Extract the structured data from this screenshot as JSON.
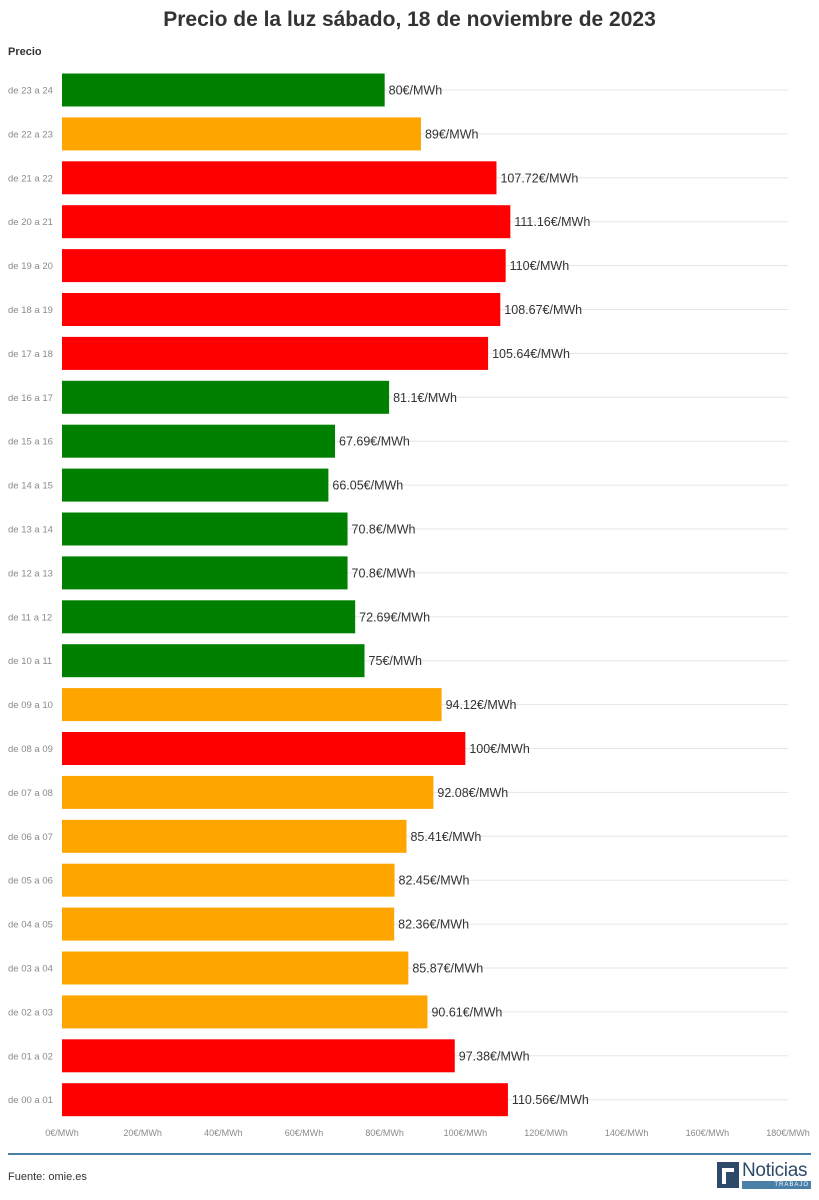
{
  "chart_data": {
    "type": "bar",
    "orientation": "horizontal",
    "title": "Precio de la luz sábado, 18 de noviembre de 2023",
    "ylabel": "Precio",
    "xlim": [
      0,
      180
    ],
    "x_ticks": [
      "0€/MWh",
      "20€/MWh",
      "40€/MWh",
      "60€/MWh",
      "80€/MWh",
      "100€/MWh",
      "120€/MWh",
      "140€/MWh",
      "160€/MWh",
      "180€/MWh"
    ],
    "grid": true,
    "categories": [
      "de 23 a 24",
      "de 22 a 23",
      "de 21 a 22",
      "de 20 a 21",
      "de 19 a 20",
      "de 18 a 19",
      "de 17 a 18",
      "de 16 a 17",
      "de 15 a 16",
      "de 14 a 15",
      "de 13 a 14",
      "de 12 a 13",
      "de 11 a 12",
      "de 10 a 11",
      "de 09 a 10",
      "de 08 a 09",
      "de 07 a 08",
      "de 06 a 07",
      "de 05 a 06",
      "de 04 a 05",
      "de 03 a 04",
      "de 02 a 03",
      "de 01 a 02",
      "de 00 a 01"
    ],
    "values": [
      80,
      89,
      107.72,
      111.16,
      110,
      108.67,
      105.64,
      81.1,
      67.69,
      66.05,
      70.8,
      70.8,
      72.69,
      75,
      94.12,
      100,
      92.08,
      85.41,
      82.45,
      82.36,
      85.87,
      90.61,
      97.38,
      110.56
    ],
    "value_labels": [
      "80€/MWh",
      "89€/MWh",
      "107.72€/MWh",
      "111.16€/MWh",
      "110€/MWh",
      "108.67€/MWh",
      "105.64€/MWh",
      "81.1€/MWh",
      "67.69€/MWh",
      "66.05€/MWh",
      "70.8€/MWh",
      "70.8€/MWh",
      "72.69€/MWh",
      "75€/MWh",
      "94.12€/MWh",
      "100€/MWh",
      "92.08€/MWh",
      "85.41€/MWh",
      "82.45€/MWh",
      "82.36€/MWh",
      "85.87€/MWh",
      "90.61€/MWh",
      "97.38€/MWh",
      "110.56€/MWh"
    ],
    "bar_colors": [
      "#008000",
      "#FFA500",
      "#FF0000",
      "#FF0000",
      "#FF0000",
      "#FF0000",
      "#FF0000",
      "#008000",
      "#008000",
      "#008000",
      "#008000",
      "#008000",
      "#008000",
      "#008000",
      "#FFA500",
      "#FF0000",
      "#FFA500",
      "#FFA500",
      "#FFA500",
      "#FFA500",
      "#FFA500",
      "#FFA500",
      "#FF0000",
      "#FF0000"
    ]
  },
  "footer": {
    "source": "Fuente: omie.es",
    "logo_word": "Noticias",
    "logo_sub": "TRABAJO"
  },
  "colors": {
    "green": "#008000",
    "orange": "#FFA500",
    "red": "#FF0000",
    "divider": "#4a7fa8",
    "brand": "#2e4a6a"
  }
}
